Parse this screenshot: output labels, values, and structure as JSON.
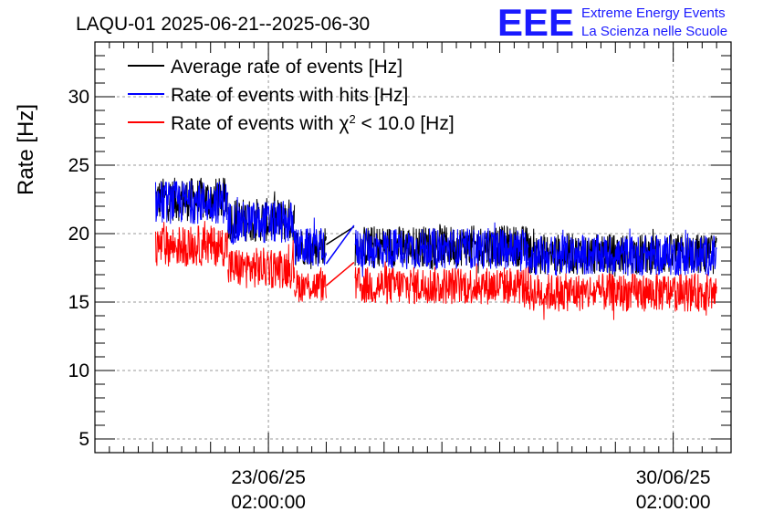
{
  "chart_data": {
    "type": "line",
    "title": "LAQU-01 2025-06-21--2025-06-30",
    "ylabel": "Rate [Hz]",
    "xlabel": "",
    "ylim": [
      4,
      34
    ],
    "y_ticks": [
      5,
      10,
      15,
      20,
      25,
      30
    ],
    "y_tick_labels": [
      "5",
      "10",
      "15",
      "20",
      "25",
      "30"
    ],
    "x_ticks": [
      {
        "day": 2.0,
        "date": "23/06/25",
        "time": "02:00:00"
      },
      {
        "day": 9.0,
        "date": "30/06/25",
        "time": "02:00:00"
      }
    ],
    "x_range_days": [
      -1.0,
      10.0
    ],
    "grid": true,
    "legend_position": "top-left",
    "series": [
      {
        "name": "Average rate of events [Hz]",
        "color": "#000000",
        "segments": [
          {
            "x_start": 0.05,
            "x_end": 1.3,
            "value": 22.5,
            "noise": 1.6
          },
          {
            "x_start": 1.3,
            "x_end": 2.45,
            "value": 21.0,
            "noise": 1.6
          },
          {
            "x_start": 2.45,
            "x_end": 3.0,
            "value": 19.1,
            "noise": 1.4
          },
          {
            "x_start": 3.5,
            "x_end": 6.5,
            "value": 19.1,
            "noise": 1.5
          },
          {
            "x_start": 6.5,
            "x_end": 9.75,
            "value": 18.5,
            "noise": 1.5
          }
        ],
        "gap_line": {
          "from": [
            3.0,
            19.2
          ],
          "to": [
            3.48,
            20.5
          ]
        }
      },
      {
        "name": "Rate of events with hits [Hz]",
        "color": "#0000ff",
        "segments": [
          {
            "x_start": 0.05,
            "x_end": 1.3,
            "value": 22.3,
            "noise": 1.6
          },
          {
            "x_start": 1.3,
            "x_end": 2.45,
            "value": 20.8,
            "noise": 1.6
          },
          {
            "x_start": 2.45,
            "x_end": 3.0,
            "value": 19.0,
            "noise": 1.4
          },
          {
            "x_start": 3.5,
            "x_end": 6.5,
            "value": 18.9,
            "noise": 1.5
          },
          {
            "x_start": 6.5,
            "x_end": 9.75,
            "value": 18.4,
            "noise": 1.5
          }
        ],
        "gap_line": {
          "from": [
            3.0,
            17.8
          ],
          "to": [
            3.48,
            20.6
          ]
        }
      },
      {
        "name": "Rate of events with χ² < 10.0 [Hz]",
        "color": "#ff0000",
        "segments": [
          {
            "x_start": 0.05,
            "x_end": 1.3,
            "value": 19.1,
            "noise": 1.5
          },
          {
            "x_start": 1.3,
            "x_end": 2.45,
            "value": 17.5,
            "noise": 1.5
          },
          {
            "x_start": 2.45,
            "x_end": 3.0,
            "value": 16.2,
            "noise": 1.2
          },
          {
            "x_start": 3.5,
            "x_end": 6.5,
            "value": 16.2,
            "noise": 1.4
          },
          {
            "x_start": 6.5,
            "x_end": 9.75,
            "value": 15.7,
            "noise": 1.4
          }
        ],
        "gap_line": {
          "from": [
            3.0,
            16.2
          ],
          "to": [
            3.48,
            17.9
          ]
        }
      }
    ]
  },
  "legend": {
    "items": [
      {
        "label": "Average rate of events [Hz]",
        "color": "#000000"
      },
      {
        "label": "Rate of events with hits [Hz]",
        "color": "#0000ff"
      },
      {
        "label_prefix": "Rate of events with ",
        "label_chi": "χ",
        "label_sup": "2",
        "label_suffix": " < 10.0 [Hz]",
        "color": "#ff0000"
      }
    ]
  },
  "logo": {
    "mark": "EEE",
    "line1": "Extreme Energy Events",
    "line2": "La Scienza nelle Scuole",
    "color": "#1a1aff"
  }
}
